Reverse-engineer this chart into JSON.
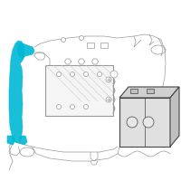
{
  "highlight_color": "#00b8d4",
  "line_color": "#999999",
  "dark_color": "#444444",
  "bat_face_color": "#e0e0e0",
  "bat_top_color": "#d0d0d0",
  "bat_side_color": "#c0c0c0"
}
